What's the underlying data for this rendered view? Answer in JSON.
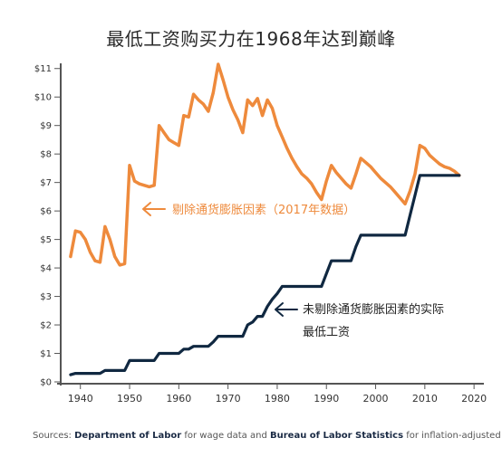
{
  "title": "最低工资购买力在1968年达到巅峰",
  "annotations": {
    "adjusted": "剔除通货膨胀因素（2017年数据）",
    "nominal_line1": "未剔除通货膨胀因素的实际",
    "nominal_line2": "最低工资"
  },
  "source": {
    "prefix": "Sources: ",
    "dol": "Department of Labor",
    "mid": " for wage data and ",
    "bls": "Bureau of Labor Statistics",
    "suffix": " for inflation-adjusted data"
  },
  "colors": {
    "adjusted": "#ee8a3c",
    "nominal": "#102841",
    "axis": "#555555",
    "text": "#333333"
  },
  "chart_data": {
    "type": "line",
    "title": "最低工资购买力在1968年达到巅峰",
    "xlim": [
      1936,
      2022
    ],
    "ylim": [
      0,
      11.5
    ],
    "x_ticks": [
      1940,
      1950,
      1960,
      1970,
      1980,
      1990,
      2000,
      2010,
      2020
    ],
    "x_tick_labels": [
      "1940",
      "1950",
      "1960",
      "1970",
      "1980",
      "1990",
      "2000",
      "2010",
      "2020"
    ],
    "y_ticks": [
      0,
      1,
      2,
      3,
      4,
      5,
      6,
      7,
      8,
      9,
      10,
      11
    ],
    "y_tick_labels": [
      "$0",
      "$1",
      "$2",
      "$3",
      "$4",
      "$5",
      "$6",
      "$7",
      "$8",
      "$9",
      "$10",
      "$11"
    ],
    "grid": false,
    "series": [
      {
        "name": "剔除通货膨胀因素（2017年数据）",
        "color": "#ee8a3c",
        "points": [
          [
            1938,
            4.4
          ],
          [
            1939,
            5.3
          ],
          [
            1940,
            5.25
          ],
          [
            1941,
            5.0
          ],
          [
            1942,
            4.55
          ],
          [
            1943,
            4.25
          ],
          [
            1944,
            4.2
          ],
          [
            1945,
            5.45
          ],
          [
            1946,
            5.0
          ],
          [
            1947,
            4.4
          ],
          [
            1948,
            4.1
          ],
          [
            1949,
            4.15
          ],
          [
            1950,
            7.6
          ],
          [
            1951,
            7.05
          ],
          [
            1952,
            6.95
          ],
          [
            1953,
            6.9
          ],
          [
            1954,
            6.85
          ],
          [
            1955,
            6.9
          ],
          [
            1956,
            9.0
          ],
          [
            1957,
            8.75
          ],
          [
            1958,
            8.5
          ],
          [
            1959,
            8.4
          ],
          [
            1960,
            8.3
          ],
          [
            1961,
            9.35
          ],
          [
            1962,
            9.3
          ],
          [
            1963,
            10.1
          ],
          [
            1964,
            9.9
          ],
          [
            1965,
            9.75
          ],
          [
            1966,
            9.5
          ],
          [
            1967,
            10.15
          ],
          [
            1968,
            11.15
          ],
          [
            1969,
            10.6
          ],
          [
            1970,
            10.0
          ],
          [
            1971,
            9.55
          ],
          [
            1972,
            9.2
          ],
          [
            1973,
            8.75
          ],
          [
            1974,
            9.9
          ],
          [
            1975,
            9.7
          ],
          [
            1976,
            9.95
          ],
          [
            1977,
            9.35
          ],
          [
            1978,
            9.9
          ],
          [
            1979,
            9.6
          ],
          [
            1980,
            9.0
          ],
          [
            1981,
            8.6
          ],
          [
            1982,
            8.2
          ],
          [
            1983,
            7.85
          ],
          [
            1984,
            7.55
          ],
          [
            1985,
            7.3
          ],
          [
            1986,
            7.15
          ],
          [
            1987,
            6.95
          ],
          [
            1988,
            6.65
          ],
          [
            1989,
            6.4
          ],
          [
            1990,
            7.05
          ],
          [
            1991,
            7.6
          ],
          [
            1992,
            7.35
          ],
          [
            1993,
            7.15
          ],
          [
            1994,
            6.95
          ],
          [
            1995,
            6.8
          ],
          [
            1996,
            7.3
          ],
          [
            1997,
            7.85
          ],
          [
            1998,
            7.7
          ],
          [
            1999,
            7.55
          ],
          [
            2000,
            7.35
          ],
          [
            2001,
            7.15
          ],
          [
            2002,
            7.0
          ],
          [
            2003,
            6.85
          ],
          [
            2004,
            6.65
          ],
          [
            2005,
            6.45
          ],
          [
            2006,
            6.25
          ],
          [
            2007,
            6.7
          ],
          [
            2008,
            7.3
          ],
          [
            2009,
            8.3
          ],
          [
            2010,
            8.2
          ],
          [
            2011,
            7.95
          ],
          [
            2012,
            7.8
          ],
          [
            2013,
            7.65
          ],
          [
            2014,
            7.55
          ],
          [
            2015,
            7.5
          ],
          [
            2016,
            7.4
          ],
          [
            2017,
            7.25
          ]
        ]
      },
      {
        "name": "未剔除通货膨胀因素的实际最低工资",
        "color": "#102841",
        "points": [
          [
            1938,
            0.25
          ],
          [
            1939,
            0.3
          ],
          [
            1944,
            0.3
          ],
          [
            1945,
            0.4
          ],
          [
            1949,
            0.4
          ],
          [
            1950,
            0.75
          ],
          [
            1955,
            0.75
          ],
          [
            1956,
            1.0
          ],
          [
            1960,
            1.0
          ],
          [
            1961,
            1.15
          ],
          [
            1962,
            1.15
          ],
          [
            1963,
            1.25
          ],
          [
            1966,
            1.25
          ],
          [
            1967,
            1.4
          ],
          [
            1968,
            1.6
          ],
          [
            1973,
            1.6
          ],
          [
            1974,
            2.0
          ],
          [
            1975,
            2.1
          ],
          [
            1976,
            2.3
          ],
          [
            1977,
            2.3
          ],
          [
            1978,
            2.65
          ],
          [
            1979,
            2.9
          ],
          [
            1980,
            3.1
          ],
          [
            1981,
            3.35
          ],
          [
            1989,
            3.35
          ],
          [
            1990,
            3.8
          ],
          [
            1991,
            4.25
          ],
          [
            1995,
            4.25
          ],
          [
            1996,
            4.75
          ],
          [
            1997,
            5.15
          ],
          [
            2006,
            5.15
          ],
          [
            2007,
            5.85
          ],
          [
            2008,
            6.55
          ],
          [
            2009,
            7.25
          ],
          [
            2017,
            7.25
          ]
        ]
      }
    ]
  }
}
